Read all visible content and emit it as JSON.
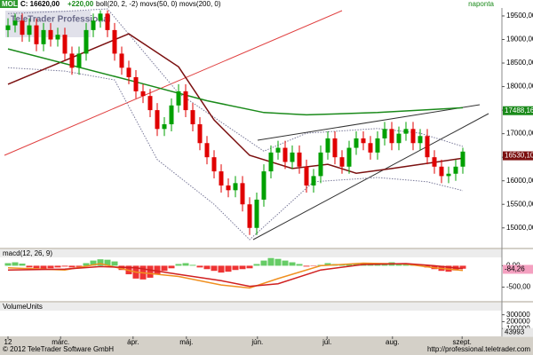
{
  "chart_data": [
    {
      "type": "candlestick",
      "title": "MOL",
      "quote": "C: 16620,00",
      "change": "+220,00",
      "indicators": "boll(20, 2, -2) movs(50, 0) movs(200, 0)",
      "interval": "naponta",
      "watermark": "TeleTrader Professional",
      "up_color": "#00a000",
      "down_color": "#e00000",
      "xlim": [
        0,
        65
      ],
      "xticks": [
        {
          "value": 0,
          "label": "12"
        },
        {
          "value": 7.4,
          "label": "márc."
        },
        {
          "value": 17.6,
          "label": "ápr."
        },
        {
          "value": 25.1,
          "label": "máj."
        },
        {
          "value": 35.1,
          "label": "jún."
        },
        {
          "value": 44.9,
          "label": "júl."
        },
        {
          "value": 54.1,
          "label": "aug."
        },
        {
          "value": 63.9,
          "label": "szept."
        }
      ],
      "ylim": [
        14600,
        19650
      ],
      "yticks": [
        {
          "value": 15000,
          "label": "15000,00"
        },
        {
          "value": 15500,
          "label": "15500,00"
        },
        {
          "value": 16000,
          "label": "16000,00"
        },
        {
          "value": 16500,
          "label": "16500,00"
        },
        {
          "value": 17000,
          "label": "17000,00"
        },
        {
          "value": 17500,
          "label": "17500,00"
        },
        {
          "value": 18000,
          "label": "18000,00"
        },
        {
          "value": 18500,
          "label": "18500,00"
        },
        {
          "value": 19000,
          "label": "19000,00"
        },
        {
          "value": 19500,
          "label": "19500,00"
        }
      ],
      "open": [
        19200,
        19300,
        19400,
        19100,
        19300,
        18900,
        19200,
        19000,
        19100,
        18700,
        18400,
        18700,
        19200,
        19400,
        19550,
        19200,
        18700,
        18400,
        18200,
        17900,
        17800,
        17500,
        17100,
        17200,
        17600,
        17900,
        17500,
        17200,
        16800,
        16500,
        16200,
        15900,
        15800,
        15950,
        15500,
        15000,
        15600,
        16200,
        16600,
        16700,
        16400,
        16600,
        16300,
        15900,
        16100,
        16600,
        16900,
        16500,
        16300,
        16700,
        16900,
        16800,
        16600,
        16900,
        17100,
        16800,
        17000,
        17100,
        16800,
        16950,
        16500,
        16300,
        16100,
        16150,
        16300
      ],
      "high": [
        19450,
        19550,
        19550,
        19450,
        19450,
        19350,
        19350,
        19250,
        19250,
        18850,
        18850,
        19350,
        19550,
        19620,
        19620,
        19350,
        18850,
        18550,
        18350,
        18050,
        17950,
        17650,
        17350,
        17750,
        18050,
        18050,
        17650,
        17350,
        16950,
        16650,
        16350,
        16050,
        16100,
        16100,
        15650,
        15750,
        16350,
        16750,
        16850,
        16850,
        16750,
        16750,
        16450,
        16250,
        16750,
        17050,
        17050,
        16650,
        16850,
        17050,
        17050,
        16950,
        17050,
        17250,
        17250,
        17150,
        17250,
        17250,
        17100,
        17100,
        16650,
        16450,
        16300,
        16450,
        16700
      ],
      "low": [
        19050,
        19150,
        18950,
        18950,
        18750,
        18750,
        18850,
        18850,
        18550,
        18250,
        18250,
        18550,
        19050,
        19250,
        19050,
        18550,
        18250,
        18050,
        17750,
        17650,
        17350,
        16950,
        16950,
        17050,
        17450,
        17350,
        17050,
        16650,
        16350,
        16050,
        15750,
        15650,
        15650,
        15350,
        14850,
        14850,
        15450,
        16050,
        16450,
        16250,
        16250,
        16150,
        15750,
        15750,
        15950,
        16450,
        16350,
        16150,
        16150,
        16550,
        16650,
        16450,
        16450,
        16750,
        16650,
        16650,
        16850,
        16650,
        16650,
        16350,
        16150,
        15950,
        15950,
        16000,
        16150
      ],
      "close": [
        19300,
        19400,
        19100,
        19300,
        18900,
        19200,
        19000,
        19100,
        18700,
        18400,
        18700,
        19200,
        19400,
        19550,
        19200,
        18700,
        18400,
        18200,
        17900,
        17800,
        17500,
        17100,
        17200,
        17600,
        17900,
        17500,
        17200,
        16800,
        16500,
        16200,
        15900,
        15800,
        15950,
        15500,
        15000,
        15600,
        16200,
        16600,
        16700,
        16400,
        16600,
        16300,
        15900,
        16100,
        16600,
        16900,
        16500,
        16300,
        16700,
        16900,
        16800,
        16600,
        16900,
        17100,
        16800,
        17000,
        17100,
        16800,
        16950,
        16500,
        16300,
        16100,
        16150,
        16300,
        16620
      ],
      "lines": [
        {
          "color": "#7a7a9a",
          "style": "dotted",
          "x": [
            0,
            8,
            14,
            24,
            36,
            42,
            52,
            58,
            64
          ],
          "values": [
            19550,
            19600,
            19650,
            17860,
            16630,
            17010,
            17110,
            17010,
            16730
          ]
        },
        {
          "color": "#7a7a9a",
          "style": "dotted",
          "x": [
            0,
            8,
            15,
            21,
            29,
            34,
            43,
            52,
            59,
            64
          ],
          "values": [
            18400,
            18330,
            18140,
            16450,
            15500,
            14750,
            15980,
            16070,
            15980,
            15790
          ]
        },
        {
          "color": "#7b1010",
          "style": "solid",
          "x": [
            0,
            17,
            24,
            29,
            34,
            40,
            45,
            49,
            54,
            64
          ],
          "values": [
            18050,
            19120,
            18420,
            17290,
            16540,
            16260,
            16350,
            16160,
            16260,
            16480
          ]
        },
        {
          "color": "#1a8a1a",
          "style": "solid",
          "x": [
            0,
            18,
            28,
            36,
            42,
            52,
            64
          ],
          "values": [
            18800,
            18100,
            17700,
            17450,
            17400,
            17450,
            17550
          ]
        }
      ],
      "price_labels": [
        {
          "value": 17488.16,
          "label": "17488,16",
          "color": "#1a8a1a"
        },
        {
          "value": 16530.1,
          "label": "16530,10",
          "color": "#7b1010"
        }
      ]
    },
    {
      "type": "macd",
      "title": "macd(12, 26, 9)",
      "ylim": [
        -800,
        340
      ],
      "yticks": [
        {
          "value": 0,
          "label": "0,00"
        },
        {
          "value": -500,
          "label": "-500,00"
        }
      ],
      "histogram": {
        "pos_color": "#66cc66",
        "neg_color": "#ee3333",
        "values": [
          60,
          80,
          50,
          -40,
          -60,
          -80,
          -60,
          -40,
          -20,
          -40,
          -30,
          60,
          120,
          150,
          140,
          100,
          -100,
          -200,
          -300,
          -320,
          -280,
          -200,
          -120,
          -60,
          40,
          60,
          20,
          -40,
          -80,
          -120,
          -160,
          -140,
          -100,
          -80,
          -60,
          40,
          120,
          180,
          160,
          120,
          80,
          40,
          -20,
          -10,
          20,
          60,
          40,
          20,
          30,
          60,
          50,
          30,
          40,
          60,
          80,
          50,
          40,
          30,
          10,
          -40,
          -80,
          -120,
          -140,
          -110,
          -70
        ]
      },
      "lines": [
        {
          "color": "#f09020",
          "style": "solid",
          "x": [
            0,
            8,
            13,
            18,
            24,
            30,
            34,
            38,
            44,
            50,
            56,
            60,
            64
          ],
          "values": [
            -50,
            -100,
            50,
            -150,
            -250,
            -450,
            -520,
            -300,
            0,
            60,
            40,
            -50,
            -110
          ]
        },
        {
          "color": "#d02020",
          "style": "solid",
          "x": [
            0,
            8,
            13,
            18,
            24,
            30,
            34,
            38,
            44,
            50,
            56,
            60,
            64
          ],
          "values": [
            -100,
            -80,
            -20,
            -50,
            -200,
            -350,
            -480,
            -420,
            -100,
            30,
            50,
            0,
            -70
          ]
        }
      ],
      "price_labels": [
        {
          "value": -84.26,
          "label": "-84,26",
          "color": "#f4a0c0"
        }
      ]
    },
    {
      "type": "volume",
      "title": "VolumeUnits",
      "ylim": [
        0,
        450000
      ],
      "yticks": [
        100000,
        200000,
        300000
      ],
      "price_labels": [
        {
          "value": 43993,
          "label": "43993",
          "color": "#e8e8e8"
        }
      ]
    }
  ],
  "footer": {
    "copyright": "© 2012 TeleTrader Software GmbH",
    "url": "http://professional.teletrader.com"
  }
}
